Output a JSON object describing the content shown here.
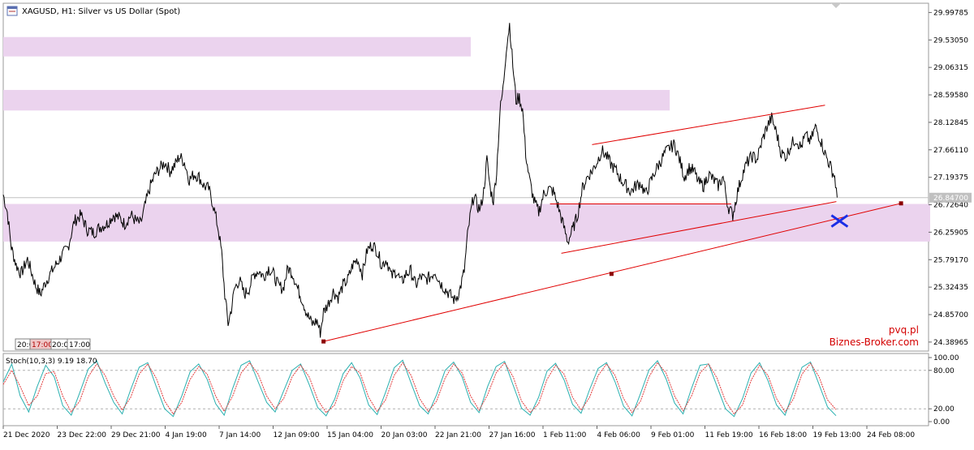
{
  "window": {
    "title": "XAGUSD, H1:  Silver vs US Dollar (Spot)",
    "icon": "chart-window-icon"
  },
  "watermark": {
    "line1": "pvq.pl",
    "line2": "Biznes-Broker.com"
  },
  "time_labels": [
    "20:0",
    "17:00",
    "20:0",
    "17:00"
  ],
  "colors": {
    "price_line": "#000000",
    "zone_fill": "#ebd3ee",
    "trendline": "#e00000",
    "cross_marker": "#1a2ee6",
    "stoch_main": "#2ab0b0",
    "stoch_signal": "#e33c3c",
    "watermark": "#d40000",
    "current_price_box": "#c0c0c0"
  },
  "chart_data": [
    {
      "type": "line",
      "symbol": "XAGUSD",
      "timeframe": "H1",
      "y_ticks": [
        "29.99785",
        "29.53050",
        "29.06315",
        "28.59580",
        "28.12845",
        "27.66110",
        "27.19375",
        "26.72640",
        "26.25905",
        "25.79170",
        "25.32435",
        "24.85700",
        "24.38965"
      ],
      "y_tick_values": [
        29.99785,
        29.5305,
        29.06315,
        28.5958,
        28.12845,
        27.6611,
        27.19375,
        26.7264,
        26.25905,
        25.7917,
        25.32435,
        24.857,
        24.38965
      ],
      "ylim": [
        24.25,
        30.1
      ],
      "x_ticks": [
        "21 Dec 2020",
        "23 Dec 22:00",
        "29 Dec 21:00",
        "4 Jan 19:00",
        "7 Jan 14:00",
        "12 Jan 09:00",
        "15 Jan 04:00",
        "20 Jan 03:00",
        "22 Jan 21:00",
        "27 Jan 16:00",
        "1 Feb 11:00",
        "4 Feb 06:00",
        "9 Feb 01:00",
        "11 Feb 19:00",
        "16 Feb 18:00",
        "19 Feb 13:00",
        "24 Feb 08:00"
      ],
      "current_price": "26.84700",
      "series": [
        {
          "x": [
            0,
            5,
            10,
            16,
            22,
            30,
            40,
            46,
            52,
            58,
            65,
            72,
            80,
            88,
            96,
            104,
            112,
            120,
            128,
            136,
            144,
            150,
            158,
            164,
            170,
            176,
            182,
            188,
            194,
            200,
            206,
            212,
            218,
            224,
            230,
            236,
            242,
            248,
            254,
            260,
            266,
            270,
            274,
            278,
            282,
            286,
            292,
            298,
            304,
            310,
            316,
            322,
            328,
            334,
            340,
            346,
            352,
            358,
            364,
            370,
            376,
            382,
            388,
            392,
            396,
            402,
            408,
            414,
            420,
            426,
            432,
            438,
            444,
            450,
            456,
            462,
            468,
            474,
            480,
            486,
            492,
            498,
            504,
            510,
            516,
            522,
            528,
            534,
            540,
            546,
            552,
            558,
            564,
            570,
            574,
            578,
            582,
            586,
            590,
            594,
            598,
            602,
            606,
            610,
            614,
            618,
            622,
            626,
            630,
            634,
            638,
            642,
            646,
            650,
            656,
            662,
            668,
            674,
            680,
            686,
            692,
            698,
            704,
            710,
            716,
            722,
            728,
            734,
            740,
            746,
            752,
            758,
            764,
            770,
            776,
            782,
            788,
            794,
            800,
            806,
            812,
            818,
            824,
            830,
            836,
            842,
            848,
            854,
            860,
            866,
            872,
            878,
            884,
            890,
            896,
            902,
            908,
            914,
            920,
            926,
            932,
            938,
            944,
            950,
            956,
            962,
            968,
            974,
            980,
            986,
            992,
            998,
            1004,
            1010,
            1016,
            1022,
            1028,
            1031
          ],
          "values": [
            26.9,
            26.6,
            26.0,
            25.7,
            25.55,
            25.8,
            25.35,
            25.2,
            25.4,
            25.55,
            25.7,
            25.85,
            26.0,
            26.45,
            26.55,
            26.3,
            26.25,
            26.35,
            26.4,
            26.55,
            26.5,
            26.4,
            26.55,
            26.45,
            26.4,
            26.75,
            27.05,
            27.25,
            27.35,
            27.45,
            27.3,
            27.4,
            27.55,
            27.45,
            27.15,
            27.25,
            27.2,
            27.05,
            27.0,
            26.7,
            26.3,
            25.9,
            25.2,
            24.7,
            24.95,
            25.3,
            25.45,
            25.2,
            25.3,
            25.55,
            25.6,
            25.5,
            25.65,
            25.55,
            25.35,
            25.3,
            25.65,
            25.55,
            25.3,
            25.1,
            24.85,
            24.7,
            24.75,
            24.55,
            24.9,
            25.05,
            25.25,
            25.15,
            25.35,
            25.45,
            25.7,
            25.8,
            25.55,
            25.95,
            26.05,
            25.95,
            25.7,
            25.8,
            25.5,
            25.6,
            25.4,
            25.55,
            25.6,
            25.35,
            25.5,
            25.45,
            25.5,
            25.6,
            25.4,
            25.3,
            25.2,
            25.1,
            25.25,
            25.6,
            26.2,
            26.6,
            26.9,
            26.7,
            26.65,
            26.95,
            27.5,
            27.0,
            26.8,
            27.3,
            28.3,
            28.7,
            29.4,
            29.8,
            29.1,
            28.5,
            28.55,
            28.35,
            27.6,
            27.2,
            26.8,
            26.6,
            26.9,
            27.0,
            26.95,
            26.7,
            26.4,
            26.1,
            26.3,
            26.55,
            27.0,
            27.2,
            27.3,
            27.45,
            27.65,
            27.55,
            27.4,
            27.3,
            27.15,
            27.05,
            26.95,
            27.05,
            27.1,
            26.9,
            27.1,
            27.3,
            27.45,
            27.6,
            27.7,
            27.75,
            27.5,
            27.2,
            27.35,
            27.3,
            27.1,
            27.05,
            27.25,
            27.15,
            27.05,
            27.2,
            26.7,
            26.55,
            26.95,
            27.25,
            27.45,
            27.55,
            27.5,
            27.8,
            28.05,
            28.2,
            27.95,
            27.6,
            27.55,
            27.75,
            27.85,
            27.7,
            27.9,
            27.8,
            28.05,
            27.85,
            27.6,
            27.4,
            27.2,
            26.85
          ],
          "note_min": 24.25,
          "note_max": 29.99
        }
      ],
      "zones": [
        {
          "y_from": 29.25,
          "y_to": 29.58,
          "x_from": 0,
          "x_to": 578
        },
        {
          "y_from": 28.33,
          "y_to": 28.68,
          "x_from": 0,
          "x_to": 824
        },
        {
          "y_from": 26.1,
          "y_to": 26.74,
          "x_from": 0,
          "x_to": 1146
        }
      ],
      "trendlines": [
        {
          "x": [
            396,
            1110
          ],
          "y": [
            24.4,
            26.75
          ]
        },
        {
          "x": [
            690,
            1030
          ],
          "y": [
            25.9,
            26.78
          ]
        },
        {
          "x": [
            728,
            1016
          ],
          "y": [
            27.75,
            28.42
          ]
        },
        {
          "x": [
            676,
            900
          ],
          "y": [
            26.74,
            26.74
          ]
        }
      ],
      "anchor_points": [
        {
          "x": 396,
          "y": 24.4
        },
        {
          "x": 752,
          "y": 25.55
        },
        {
          "x": 1110,
          "y": 26.75
        }
      ],
      "cross_marker": {
        "x": 1034,
        "y": 26.45
      }
    },
    {
      "type": "line",
      "name": "Stoch(10,3,3)",
      "header": "Stoch(10,3,3)  9.19  18.70",
      "values_shown": [
        "9.19",
        "18.70"
      ],
      "y_ticks": [
        "100.00",
        "80.00",
        "20.00",
        "0.00"
      ],
      "y_tick_values": [
        100,
        80,
        20,
        0
      ],
      "ylim": [
        0,
        100
      ],
      "levels": [
        20,
        80
      ],
      "series": [
        {
          "name": "main",
          "values": [
            62,
            90,
            40,
            15,
            55,
            88,
            70,
            25,
            10,
            45,
            82,
            95,
            60,
            30,
            12,
            50,
            85,
            92,
            55,
            20,
            8,
            40,
            78,
            90,
            66,
            28,
            10,
            52,
            88,
            95,
            62,
            30,
            15,
            48,
            80,
            90,
            58,
            22,
            9,
            35,
            75,
            92,
            68,
            26,
            11,
            46,
            84,
            96,
            60,
            25,
            12,
            42,
            80,
            93,
            70,
            30,
            14,
            55,
            86,
            94,
            57,
            21,
            10,
            38,
            79,
            91,
            65,
            27,
            13,
            50,
            83,
            92,
            62,
            24,
            9,
            44,
            81,
            95,
            67,
            29,
            12,
            52,
            88,
            90,
            55,
            20,
            8,
            36,
            76,
            92,
            64,
            26,
            10,
            48,
            85,
            93,
            58,
            23,
            9.19
          ]
        },
        {
          "name": "signal",
          "values": [
            58,
            80,
            55,
            25,
            40,
            75,
            78,
            40,
            15,
            32,
            70,
            90,
            72,
            40,
            18,
            38,
            74,
            90,
            68,
            32,
            12,
            30,
            66,
            86,
            74,
            40,
            16,
            40,
            76,
            92,
            74,
            40,
            20,
            36,
            70,
            88,
            70,
            34,
            14,
            26,
            64,
            86,
            76,
            38,
            16,
            34,
            72,
            92,
            72,
            36,
            16,
            32,
            68,
            90,
            76,
            40,
            18,
            42,
            76,
            92,
            70,
            32,
            14,
            28,
            66,
            88,
            74,
            38,
            18,
            38,
            72,
            90,
            72,
            36,
            14,
            32,
            70,
            92,
            76,
            40,
            17,
            40,
            76,
            90,
            68,
            32,
            12,
            26,
            64,
            88,
            72,
            36,
            15,
            36,
            74,
            91,
            70,
            34,
            18.7
          ]
        }
      ]
    }
  ]
}
